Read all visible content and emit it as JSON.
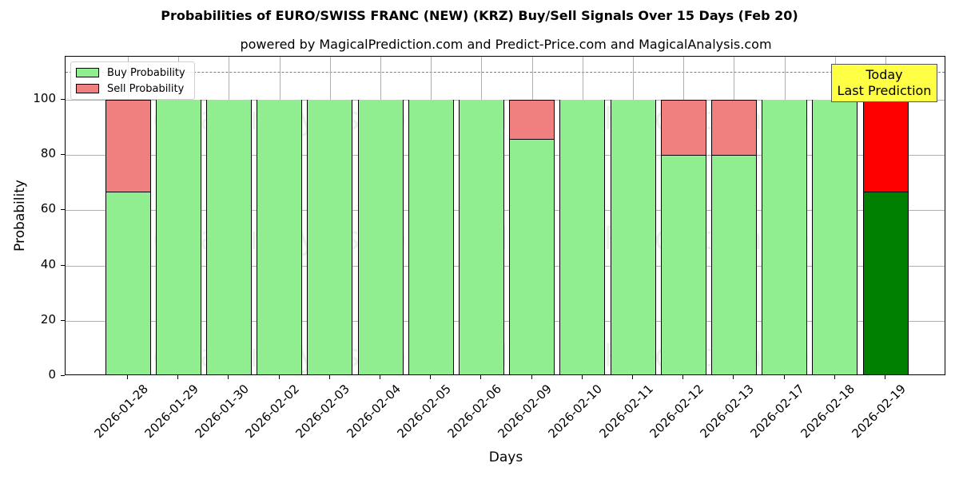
{
  "header": {
    "title": "Probabilities of EURO/SWISS FRANC (NEW) (KRZ) Buy/Sell Signals Over 15 Days (Feb 20)",
    "subtitle": "powered by MagicalPrediction.com and Predict-Price.com and MagicalAnalysis.com"
  },
  "legend": {
    "buy_label": "Buy Probability",
    "sell_label": "Sell Probability"
  },
  "annotation": {
    "line1": "Today",
    "line2": "Last Prediction"
  },
  "watermarks": [
    "MagicalAnalysis.com",
    "MagicalPrediction.com"
  ],
  "colors": {
    "buy": "#90ee90",
    "sell": "#f08080",
    "today_buy": "#008000",
    "today_sell": "#ff0000",
    "annotation_bg": "#ffff44"
  },
  "chart_data": {
    "type": "bar",
    "stacked": true,
    "title": "Probabilities of EURO/SWISS FRANC (NEW) (KRZ) Buy/Sell Signals Over 15 Days (Feb 20)",
    "subtitle": "powered by MagicalPrediction.com and Predict-Price.com and MagicalAnalysis.com",
    "xlabel": "Days",
    "ylabel": "Probability",
    "ylim": [
      0,
      115
    ],
    "yticks": [
      0,
      20,
      40,
      60,
      80,
      100
    ],
    "grid": true,
    "legend_position": "upper left",
    "reference_line": {
      "y": 110,
      "style": "dashed",
      "color": "#808080"
    },
    "categories": [
      "2026-01-28",
      "2026-01-29",
      "2026-01-30",
      "2026-02-02",
      "2026-02-03",
      "2026-02-04",
      "2026-02-05",
      "2026-02-06",
      "2026-02-09",
      "2026-02-10",
      "2026-02-11",
      "2026-02-12",
      "2026-02-13",
      "2026-02-17",
      "2026-02-18",
      "2026-02-19"
    ],
    "series": [
      {
        "name": "Buy Probability",
        "values": [
          66.7,
          100,
          100,
          100,
          100,
          100,
          100,
          100,
          85.7,
          100,
          100,
          80,
          80,
          100,
          100,
          66.7
        ]
      },
      {
        "name": "Sell Probability",
        "values": [
          33.3,
          0,
          0,
          0,
          0,
          0,
          0,
          0,
          14.3,
          0,
          0,
          20,
          20,
          0,
          0,
          33.3
        ]
      }
    ],
    "highlighted_category": "2026-02-19",
    "annotation": "Today\nLast Prediction"
  }
}
